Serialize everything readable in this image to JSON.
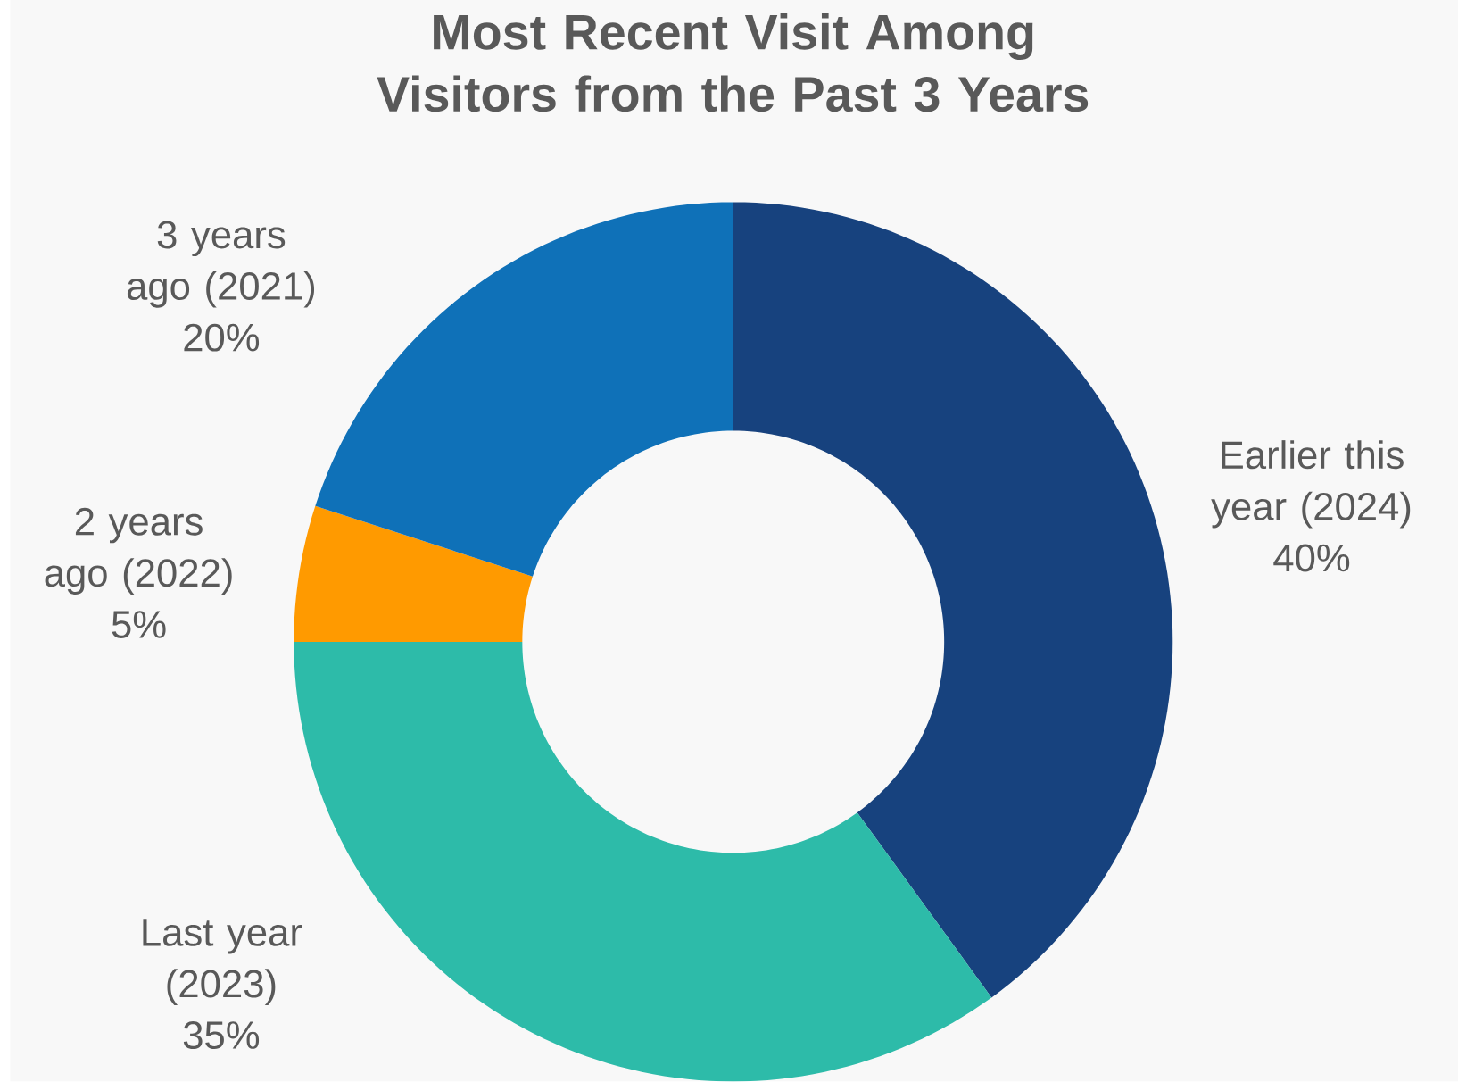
{
  "chart_data": {
    "type": "donut",
    "title": "Most Recent Visit Among Visitors from the Past 3 Years",
    "categories": [
      "Earlier this year (2024)",
      "Last year (2023)",
      "2 years ago (2022)",
      "3 years ago (2021)"
    ],
    "values": [
      40,
      35,
      5,
      20
    ],
    "value_labels": [
      "40%",
      "35%",
      "5%",
      "20%"
    ],
    "colors": [
      "#17427e",
      "#2dbba9",
      "#ff9a00",
      "#0f71b8"
    ]
  }
}
